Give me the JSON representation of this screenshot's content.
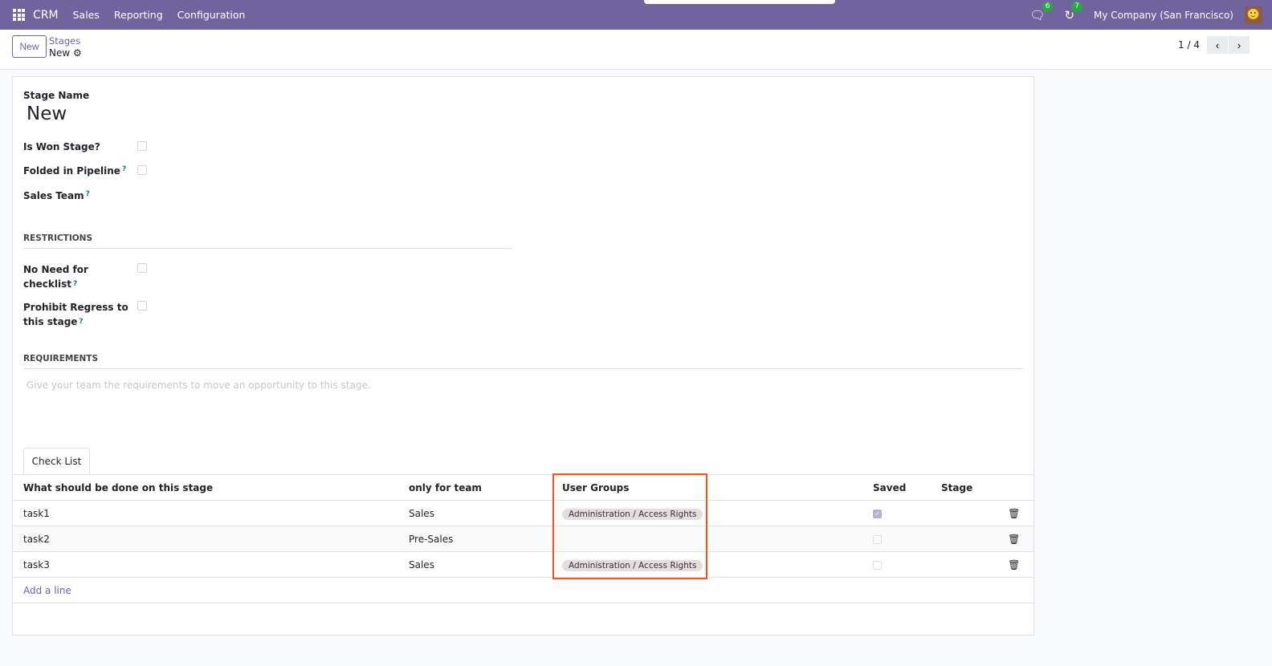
{
  "nav": {
    "brand": "CRM",
    "menu": [
      "Sales",
      "Reporting",
      "Configuration"
    ],
    "messages_count": "6",
    "activities_count": "7",
    "company": "My Company (San Francisco)"
  },
  "control": {
    "new_label": "New",
    "breadcrumb_parent": "Stages",
    "breadcrumb_current": "New",
    "pager": "1 / 4"
  },
  "form": {
    "stage_name_label": "Stage Name",
    "stage_name": "New",
    "is_won_label": "Is Won Stage?",
    "folded_label": "Folded in Pipeline",
    "sales_team_label": "Sales Team",
    "restrictions": "RESTRICTIONS",
    "no_need_label_1": "No Need for",
    "no_need_label_2": "checklist",
    "prohibit_label_1": "Prohibit Regress to",
    "prohibit_label_2": "this stage",
    "requirements": "REQUIREMENTS",
    "requirements_placeholder": "Give your team the requirements to move an opportunity to this stage.",
    "help": "?"
  },
  "checklist": {
    "tab": "Check List",
    "headers": [
      "What should be done on this stage",
      "only for team",
      "User Groups",
      "Saved",
      "Stage"
    ],
    "rows": [
      {
        "task": "task1",
        "team": "Sales",
        "group": "Administration / Access Rights",
        "saved": true
      },
      {
        "task": "task2",
        "team": "Pre-Sales",
        "group": "",
        "saved": false
      },
      {
        "task": "task3",
        "team": "Sales",
        "group": "Administration / Access Rights",
        "saved": false
      }
    ],
    "add_line": "Add a line"
  },
  "colors": {
    "brand": "#71639e",
    "highlight": "#f4511e"
  }
}
